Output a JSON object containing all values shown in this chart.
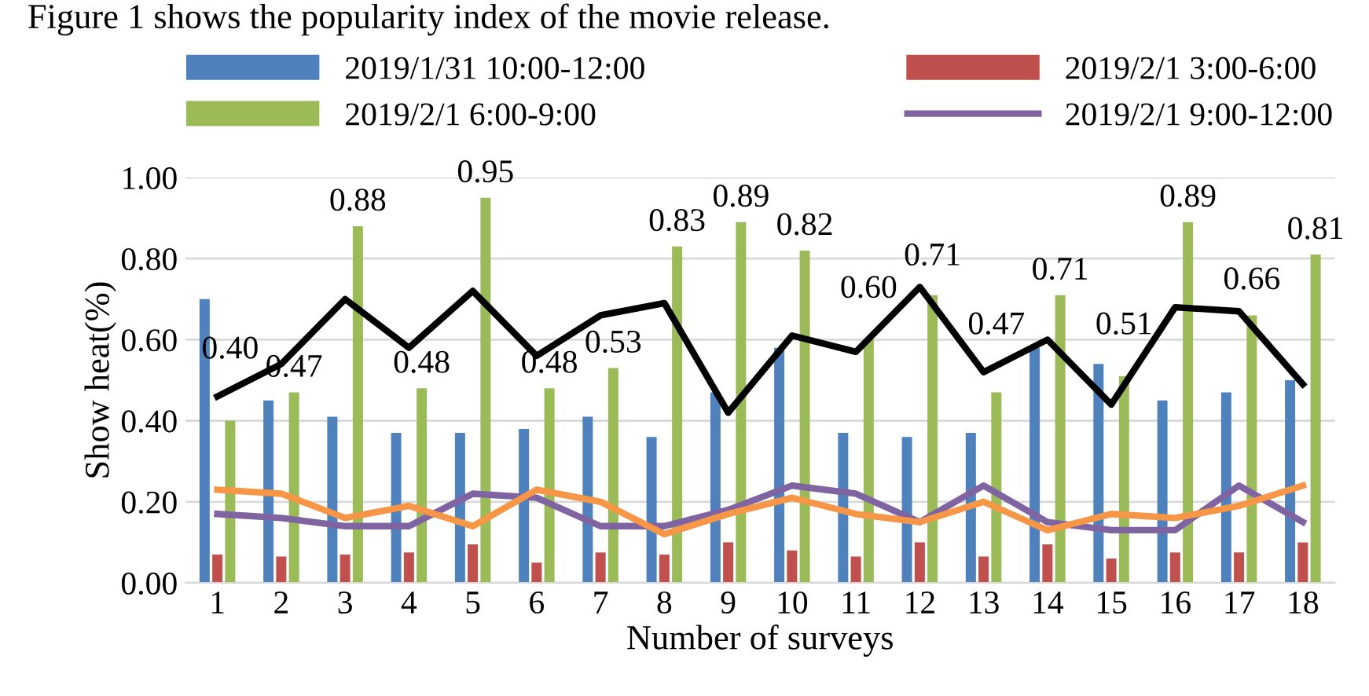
{
  "chart_data": {
    "type": "bar",
    "xlabel": "Number of surveys",
    "ylabel": "Show heat(%)",
    "annotations": [
      "Figure 1 shows the popularity index of the movie release."
    ],
    "categories": [
      "1",
      "2",
      "3",
      "4",
      "5",
      "6",
      "7",
      "8",
      "9",
      "10",
      "11",
      "12",
      "13",
      "14",
      "15",
      "16",
      "17",
      "18"
    ],
    "series": [
      {
        "name": "2019/1/31 10:00-12:00",
        "color": "#4f81bd",
        "values": [
          0.7,
          0.45,
          0.41,
          0.37,
          0.37,
          0.38,
          0.41,
          0.36,
          0.47,
          0.58,
          0.37,
          0.36,
          0.37,
          0.58,
          0.54,
          0.45,
          0.47,
          0.5
        ]
      },
      {
        "name": "2019/2/1 3:00-6:00",
        "color": "#c0504d",
        "values": [
          0.07,
          0.065,
          0.07,
          0.075,
          0.095,
          0.05,
          0.075,
          0.07,
          0.1,
          0.08,
          0.065,
          0.1,
          0.065,
          0.095,
          0.06,
          0.075,
          0.075,
          0.1
        ]
      },
      {
        "name": "2019/2/1 6:00-9:00",
        "color": "#9bbb59",
        "values": [
          0.4,
          0.47,
          0.88,
          0.48,
          0.95,
          0.48,
          0.53,
          0.83,
          0.89,
          0.82,
          0.6,
          0.71,
          0.47,
          0.71,
          0.51,
          0.89,
          0.66,
          0.81
        ],
        "value_labels": [
          "0.40",
          "0.47",
          "0.88",
          "0.48",
          "0.95",
          "0.48",
          "0.53",
          "0.83",
          "0.89",
          "0.82",
          "0.60",
          "0.71",
          "0.47",
          "0.71",
          "0.51",
          "0.89",
          "0.66",
          "0.81"
        ]
      },
      {
        "name": "2019/2/1 9:00-12:00",
        "type": "line",
        "color": "#8064a2",
        "values": [
          0.17,
          0.16,
          0.14,
          0.14,
          0.22,
          0.21,
          0.14,
          0.14,
          0.18,
          0.24,
          0.22,
          0.15,
          0.24,
          0.15,
          0.13,
          0.13,
          0.24,
          0.15
        ]
      },
      {
        "type": "line",
        "color": "#f79646",
        "values": [
          0.23,
          0.22,
          0.16,
          0.19,
          0.14,
          0.23,
          0.2,
          0.12,
          0.17,
          0.21,
          0.17,
          0.15,
          0.2,
          0.13,
          0.17,
          0.16,
          0.19,
          0.24
        ]
      },
      {
        "type": "line",
        "color": "#000000",
        "values": [
          0.46,
          0.54,
          0.7,
          0.58,
          0.72,
          0.56,
          0.66,
          0.69,
          0.42,
          0.61,
          0.57,
          0.73,
          0.52,
          0.6,
          0.44,
          0.68,
          0.67,
          0.49
        ]
      }
    ],
    "ylim": [
      0,
      1.0
    ],
    "yticks": [
      {
        "value": 0,
        "label": "0.00"
      },
      {
        "value": 0.2,
        "label": "0.20"
      },
      {
        "value": 0.4,
        "label": "0.40"
      },
      {
        "value": 0.6,
        "label": "0.60"
      },
      {
        "value": 0.8,
        "label": "0.80"
      },
      {
        "value": 1.0,
        "label": "1.00"
      }
    ],
    "grid": "y",
    "legend": "top"
  }
}
